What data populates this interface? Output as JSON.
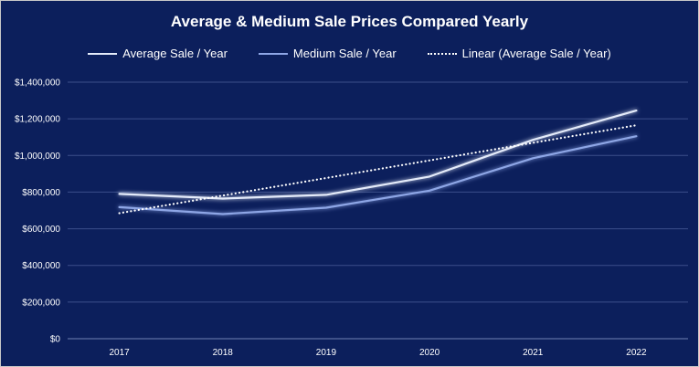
{
  "chart_data": {
    "type": "line",
    "title": "Average & Medium Sale Prices Compared Yearly",
    "categories": [
      "2017",
      "2018",
      "2019",
      "2020",
      "2021",
      "2022"
    ],
    "series": [
      {
        "name": "Average Sale / Year",
        "values": [
          790000,
          765000,
          785000,
          885000,
          1085000,
          1245000
        ],
        "color": "#e4ebfa",
        "style": "solid"
      },
      {
        "name": "Medium Sale / Year",
        "values": [
          718000,
          680000,
          715000,
          808000,
          985000,
          1105000
        ],
        "color": "#8ea6e6",
        "style": "solid"
      },
      {
        "name": "Linear (Average Sale / Year)",
        "values": [
          685000,
          781000,
          877000,
          973000,
          1069000,
          1165000
        ],
        "color": "#ffffff",
        "style": "dotted"
      }
    ],
    "ylim": [
      0,
      1400000
    ],
    "ytick_labels": [
      "$0",
      "$200,000",
      "$400,000",
      "$600,000",
      "$800,000",
      "$1,000,000",
      "$1,200,000",
      "$1,400,000"
    ],
    "grid": true,
    "legend_position": "top",
    "background_color": "#0c1f5c",
    "grid_color": "#3b4f8a"
  }
}
